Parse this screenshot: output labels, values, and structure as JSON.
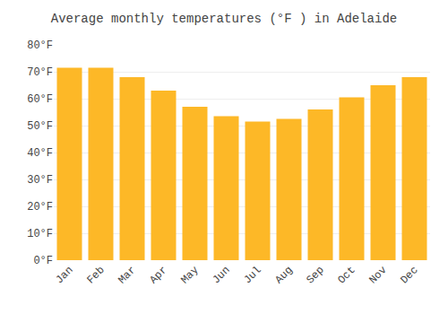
{
  "chart_data": {
    "type": "bar",
    "title": "Average monthly temperatures (°F ) in Adelaide",
    "categories": [
      "Jan",
      "Feb",
      "Mar",
      "Apr",
      "May",
      "Jun",
      "Jul",
      "Aug",
      "Sep",
      "Oct",
      "Nov",
      "Dec"
    ],
    "values": [
      71.5,
      71.5,
      68.0,
      63.0,
      57.0,
      53.5,
      51.5,
      52.5,
      56.0,
      60.5,
      65.0,
      68.0
    ],
    "color": "#FDB827",
    "ylim": [
      0,
      80
    ],
    "yticks": [
      {
        "value": 0,
        "label": "0°F"
      },
      {
        "value": 10,
        "label": "10°F"
      },
      {
        "value": 20,
        "label": "20°F"
      },
      {
        "value": 30,
        "label": "30°F"
      },
      {
        "value": 40,
        "label": "40°F"
      },
      {
        "value": 50,
        "label": "50°F"
      },
      {
        "value": 60,
        "label": "60°F"
      },
      {
        "value": 70,
        "label": "70°F"
      },
      {
        "value": 80,
        "label": "80°F"
      }
    ],
    "grid": true
  }
}
